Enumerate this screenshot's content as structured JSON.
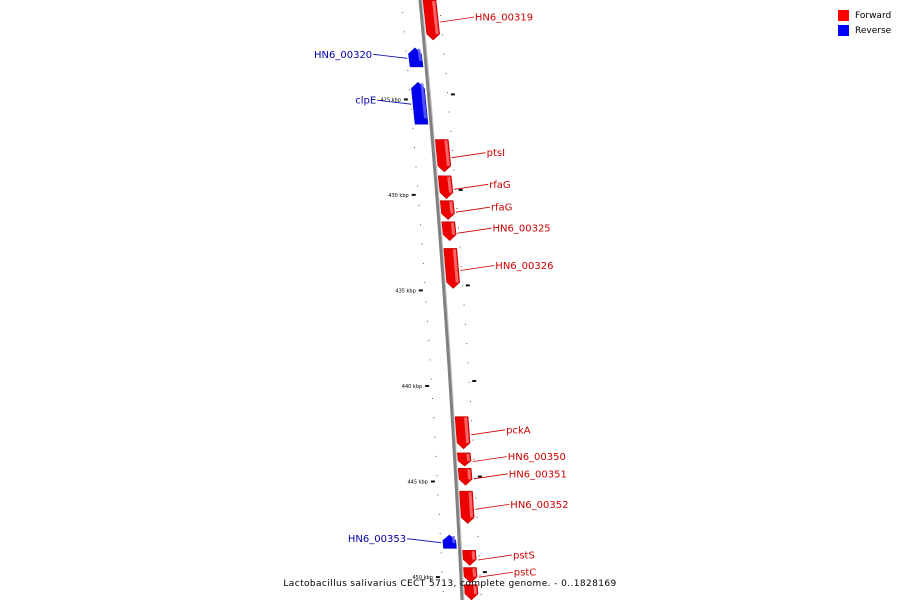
{
  "legend": {
    "forward": {
      "label": "Forward",
      "color": "#ff0000"
    },
    "reverse": {
      "label": "Reverse",
      "color": "#0000ff"
    }
  },
  "caption": "Lactobacillus salivarius CECT 5713, complete genome. - 0..1828169",
  "colors": {
    "forward_fill": "#ee0000",
    "forward_light": "#ff8080",
    "forward_label": "#cc0000",
    "reverse_fill": "#0000ee",
    "reverse_light": "#6666ff",
    "reverse_label": "#0000aa",
    "backbone": "#808080"
  },
  "view": {
    "start_kbp": 419.8,
    "end_kbp": 451.2
  },
  "ticks": [
    {
      "kbp": 425,
      "label": "425 kbp"
    },
    {
      "kbp": 430,
      "label": "430 kbp"
    },
    {
      "kbp": 435,
      "label": "435 kbp"
    },
    {
      "kbp": 440,
      "label": "440 kbp"
    },
    {
      "kbp": 445,
      "label": "445 kbp"
    },
    {
      "kbp": 450,
      "label": "450 kbp"
    }
  ],
  "genes": [
    {
      "name": "HN6_00319",
      "strand": "forward",
      "start_kbp": 419.8,
      "end_kbp": 421.9
    },
    {
      "name": "HN6_00320",
      "strand": "reverse",
      "start_kbp": 422.3,
      "end_kbp": 423.3
    },
    {
      "name": "clpE",
      "strand": "reverse",
      "start_kbp": 424.1,
      "end_kbp": 426.3
    },
    {
      "name": "ptsI",
      "strand": "forward",
      "start_kbp": 427.1,
      "end_kbp": 428.8
    },
    {
      "name": "rfaG",
      "strand": "forward",
      "start_kbp": 429.0,
      "end_kbp": 430.2
    },
    {
      "name": "rfaG",
      "strand": "forward",
      "start_kbp": 430.3,
      "end_kbp": 431.3
    },
    {
      "name": "HN6_00325",
      "strand": "forward",
      "start_kbp": 431.4,
      "end_kbp": 432.4
    },
    {
      "name": "HN6_00326",
      "strand": "forward",
      "start_kbp": 432.8,
      "end_kbp": 434.9
    },
    {
      "name": "pckA",
      "strand": "forward",
      "start_kbp": 441.6,
      "end_kbp": 443.3
    },
    {
      "name": "HN6_00350",
      "strand": "forward",
      "start_kbp": 443.5,
      "end_kbp": 444.2
    },
    {
      "name": "HN6_00351",
      "strand": "forward",
      "start_kbp": 444.3,
      "end_kbp": 445.2
    },
    {
      "name": "HN6_00352",
      "strand": "forward",
      "start_kbp": 445.5,
      "end_kbp": 447.2
    },
    {
      "name": "HN6_00353",
      "strand": "reverse",
      "start_kbp": 447.8,
      "end_kbp": 448.5
    },
    {
      "name": "pstS",
      "strand": "forward",
      "start_kbp": 448.6,
      "end_kbp": 449.4
    },
    {
      "name": "pstC",
      "strand": "forward",
      "start_kbp": 449.5,
      "end_kbp": 450.3
    },
    {
      "name": "",
      "strand": "forward",
      "start_kbp": 450.4,
      "end_kbp": 451.2
    }
  ]
}
